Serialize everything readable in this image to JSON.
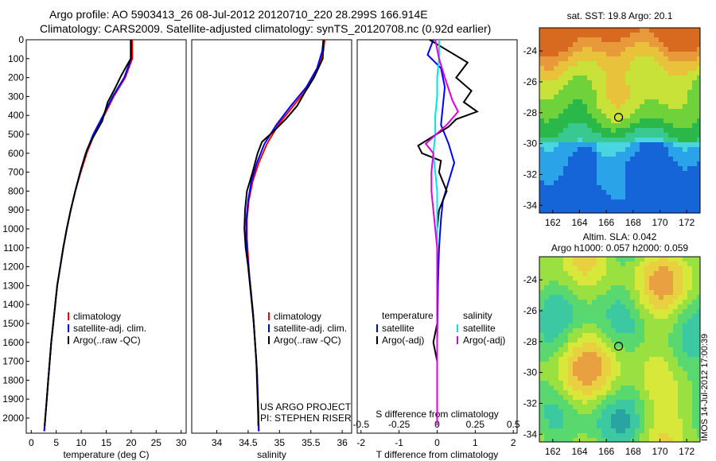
{
  "header": {
    "line1": "Argo profile: AO 5903413_26 08-Jul-2012 20120710_220 28.299S 166.914E",
    "line2": "Climatology: CARS2009. Satellite-adjusted climatology: synTS_20120708.nc (0.92d earlier)"
  },
  "credit": "IMOS 14-Jul-2012 17:00:39",
  "colors": {
    "climatology": "#ff0000",
    "satellite": "#0000ff",
    "argo": "#000000",
    "cyan": "#00e5e5",
    "magenta": "#e000e0"
  },
  "chart_data": [
    {
      "type": "line",
      "id": "temperature",
      "xlabel": "temperature (deg C)",
      "xlim": [
        -1,
        31
      ],
      "ylim": [
        2080,
        0
      ],
      "xticks": [
        0,
        5,
        10,
        15,
        20,
        25,
        30
      ],
      "yticks": [
        0,
        100,
        200,
        300,
        400,
        500,
        600,
        700,
        800,
        900,
        1000,
        1100,
        1200,
        1300,
        1400,
        1500,
        1600,
        1700,
        1800,
        1900,
        2000
      ],
      "legend": [
        "climatology",
        "satellite-adj. clim.",
        "Argo(..raw -QC)"
      ],
      "series": [
        {
          "name": "climatology",
          "color": "#ff0000",
          "points": [
            [
              20.2,
              0
            ],
            [
              20.2,
              100
            ],
            [
              18.8,
              200
            ],
            [
              16.5,
              300
            ],
            [
              14.6,
              400
            ],
            [
              12.6,
              500
            ],
            [
              11.1,
              600
            ],
            [
              9.9,
              700
            ],
            [
              8.8,
              800
            ],
            [
              7.9,
              900
            ],
            [
              7.1,
              1000
            ],
            [
              6.4,
              1100
            ],
            [
              5.8,
              1200
            ],
            [
              5.2,
              1300
            ],
            [
              4.8,
              1400
            ],
            [
              4.4,
              1500
            ],
            [
              4.0,
              1600
            ],
            [
              3.7,
              1700
            ],
            [
              3.4,
              1800
            ],
            [
              3.1,
              1900
            ],
            [
              2.8,
              2000
            ],
            [
              2.6,
              2070
            ]
          ]
        },
        {
          "name": "satellite-adj. clim.",
          "color": "#0000ff",
          "points": [
            [
              20.0,
              0
            ],
            [
              20.0,
              100
            ],
            [
              18.6,
              200
            ],
            [
              16.3,
              300
            ],
            [
              14.4,
              400
            ],
            [
              12.4,
              500
            ],
            [
              10.9,
              600
            ],
            [
              9.8,
              700
            ],
            [
              8.8,
              800
            ],
            [
              7.9,
              900
            ],
            [
              7.1,
              1000
            ],
            [
              6.4,
              1100
            ],
            [
              5.8,
              1200
            ],
            [
              5.2,
              1300
            ],
            [
              4.8,
              1400
            ],
            [
              4.4,
              1500
            ],
            [
              4.0,
              1600
            ],
            [
              3.7,
              1700
            ],
            [
              3.4,
              1800
            ],
            [
              3.1,
              1900
            ],
            [
              2.8,
              2000
            ],
            [
              2.6,
              2070
            ]
          ]
        },
        {
          "name": "Argo(..raw -QC)",
          "color": "#000000",
          "points": [
            [
              19.9,
              0
            ],
            [
              19.9,
              100
            ],
            [
              18.0,
              190
            ],
            [
              16.7,
              260
            ],
            [
              15.3,
              330
            ],
            [
              14.2,
              430
            ],
            [
              12.3,
              520
            ],
            [
              11.2,
              580
            ],
            [
              10.0,
              680
            ],
            [
              8.8,
              800
            ],
            [
              7.9,
              900
            ],
            [
              7.1,
              1000
            ],
            [
              6.4,
              1100
            ],
            [
              5.8,
              1200
            ],
            [
              5.2,
              1300
            ],
            [
              4.8,
              1400
            ],
            [
              4.4,
              1500
            ],
            [
              4.0,
              1600
            ],
            [
              3.7,
              1700
            ],
            [
              3.4,
              1800
            ],
            [
              3.1,
              1900
            ],
            [
              2.8,
              2000
            ],
            [
              2.7,
              2040
            ]
          ]
        }
      ]
    },
    {
      "type": "line",
      "id": "salinity",
      "xlabel": "salinity",
      "xlim": [
        33.6,
        36.15
      ],
      "ylim": [
        2080,
        0
      ],
      "xticks": [
        34,
        34.5,
        35,
        35.5,
        36
      ],
      "legend": [
        "climatology",
        "satellite-adj. clim.",
        "Argo(..raw -QC)"
      ],
      "annotation": [
        "US ARGO PROJECT",
        "PI: STEPHEN RISER"
      ],
      "series": [
        {
          "name": "climatology",
          "color": "#ff0000",
          "points": [
            [
              35.72,
              0
            ],
            [
              35.7,
              60
            ],
            [
              35.62,
              150
            ],
            [
              35.46,
              250
            ],
            [
              35.22,
              350
            ],
            [
              34.98,
              450
            ],
            [
              34.8,
              550
            ],
            [
              34.67,
              650
            ],
            [
              34.57,
              750
            ],
            [
              34.51,
              850
            ],
            [
              34.48,
              950
            ],
            [
              34.48,
              1050
            ],
            [
              34.5,
              1150
            ],
            [
              34.52,
              1250
            ],
            [
              34.55,
              1350
            ],
            [
              34.58,
              1450
            ],
            [
              34.6,
              1550
            ],
            [
              34.62,
              1650
            ],
            [
              34.64,
              1750
            ],
            [
              34.65,
              1850
            ],
            [
              34.66,
              1950
            ],
            [
              34.67,
              2070
            ]
          ]
        },
        {
          "name": "satellite-adj. clim.",
          "color": "#0000ff",
          "points": [
            [
              35.7,
              0
            ],
            [
              35.68,
              60
            ],
            [
              35.6,
              150
            ],
            [
              35.43,
              250
            ],
            [
              35.18,
              350
            ],
            [
              34.95,
              450
            ],
            [
              34.76,
              550
            ],
            [
              34.64,
              650
            ],
            [
              34.55,
              750
            ],
            [
              34.5,
              850
            ],
            [
              34.47,
              950
            ],
            [
              34.47,
              1050
            ],
            [
              34.49,
              1150
            ],
            [
              34.52,
              1250
            ],
            [
              34.55,
              1350
            ],
            [
              34.58,
              1450
            ],
            [
              34.6,
              1550
            ],
            [
              34.62,
              1650
            ],
            [
              34.64,
              1750
            ],
            [
              34.65,
              1850
            ],
            [
              34.66,
              1950
            ],
            [
              34.67,
              2070
            ]
          ]
        },
        {
          "name": "Argo(..raw -QC)",
          "color": "#000000",
          "points": [
            [
              35.7,
              0
            ],
            [
              35.69,
              100
            ],
            [
              35.55,
              200
            ],
            [
              35.4,
              280
            ],
            [
              35.28,
              350
            ],
            [
              35.1,
              420
            ],
            [
              34.92,
              480
            ],
            [
              34.72,
              540
            ],
            [
              34.65,
              600
            ],
            [
              34.57,
              700
            ],
            [
              34.48,
              800
            ],
            [
              34.45,
              900
            ],
            [
              34.44,
              1000
            ],
            [
              34.46,
              1100
            ],
            [
              34.5,
              1200
            ],
            [
              34.53,
              1300
            ],
            [
              34.56,
              1400
            ],
            [
              34.59,
              1500
            ],
            [
              34.61,
              1600
            ],
            [
              34.63,
              1700
            ],
            [
              34.64,
              1800
            ],
            [
              34.65,
              1900
            ],
            [
              34.66,
              2000
            ],
            [
              34.66,
              2040
            ]
          ]
        }
      ]
    },
    {
      "type": "line",
      "id": "difference",
      "xlabel": "T difference from climatology",
      "top_label": "S difference from climatology",
      "xlim": [
        -2.1,
        2.1
      ],
      "ylim": [
        2080,
        0
      ],
      "xticks_T": [
        -2,
        -1,
        0,
        1,
        2
      ],
      "xticks_S": [
        "-0.5",
        "-0.25",
        "0",
        "0.25",
        "0.5"
      ],
      "xticks_S_pos": [
        -2,
        -1,
        0,
        1,
        2
      ],
      "legend_left_title": "temperature",
      "legend_right_title": "salinity",
      "legend_left": [
        "satellite",
        "Argo(-adj)"
      ],
      "legend_right": [
        "satellite",
        "Argo(-adj)"
      ],
      "series": [
        {
          "name": "T satellite",
          "color": "#0000ff",
          "points": [
            [
              -0.1,
              0
            ],
            [
              -0.25,
              80
            ],
            [
              0.1,
              150
            ],
            [
              0.2,
              250
            ],
            [
              0.15,
              350
            ],
            [
              0.1,
              450
            ],
            [
              0.3,
              550
            ],
            [
              0.45,
              650
            ],
            [
              0.3,
              750
            ],
            [
              0.15,
              850
            ],
            [
              0.1,
              950
            ],
            [
              0.05,
              1100
            ],
            [
              0.02,
              1300
            ],
            [
              0.0,
              1600
            ],
            [
              0.0,
              2040
            ]
          ]
        },
        {
          "name": "T Argo(-adj)",
          "color": "#000000",
          "points": [
            [
              -0.2,
              0
            ],
            [
              0.3,
              60
            ],
            [
              0.8,
              120
            ],
            [
              0.5,
              200
            ],
            [
              0.9,
              270
            ],
            [
              0.7,
              330
            ],
            [
              1.05,
              380
            ],
            [
              0.5,
              420
            ],
            [
              0.3,
              460
            ],
            [
              -0.5,
              560
            ],
            [
              -0.4,
              600
            ],
            [
              0.1,
              640
            ],
            [
              0.05,
              700
            ],
            [
              0.25,
              800
            ],
            [
              0.05,
              900
            ],
            [
              0.0,
              1000
            ],
            [
              0.0,
              1500
            ],
            [
              -0.1,
              1600
            ],
            [
              0.0,
              1700
            ],
            [
              0.0,
              2040
            ]
          ]
        },
        {
          "name": "S satellite",
          "color": "#00e5e5",
          "points": [
            [
              0.05,
              0
            ],
            [
              0.05,
              100
            ],
            [
              0.0,
              200
            ],
            [
              0.0,
              300
            ],
            [
              -0.05,
              400
            ],
            [
              -0.05,
              500
            ],
            [
              -0.1,
              600
            ],
            [
              -0.05,
              700
            ],
            [
              0.0,
              800
            ],
            [
              0.0,
              1000
            ],
            [
              0.0,
              2040
            ]
          ]
        },
        {
          "name": "S Argo(-adj)",
          "color": "#e000e0",
          "points": [
            [
              -0.05,
              0
            ],
            [
              0.05,
              100
            ],
            [
              0.2,
              200
            ],
            [
              0.4,
              320
            ],
            [
              0.55,
              380
            ],
            [
              0.25,
              450
            ],
            [
              -0.3,
              550
            ],
            [
              -0.1,
              600
            ],
            [
              -0.15,
              700
            ],
            [
              -0.15,
              800
            ],
            [
              -0.1,
              900
            ],
            [
              -0.05,
              1000
            ],
            [
              0.0,
              1100
            ],
            [
              0.0,
              2040
            ]
          ]
        }
      ]
    },
    {
      "type": "heatmap",
      "id": "sst-map",
      "title": "sat. SST: 19.8  Argo: 20.1",
      "xticks": [
        162,
        164,
        166,
        168,
        170,
        172
      ],
      "yticks": [
        -24,
        -26,
        -28,
        -30,
        -32,
        -34
      ],
      "xlim": [
        161,
        173
      ],
      "ylim": [
        -34.5,
        -22.5
      ],
      "colors": [
        "#1565d8",
        "#2aa3e8",
        "#4ad6e0",
        "#38c890",
        "#2ab84a",
        "#6fd23a",
        "#c8e23a",
        "#e8c23a",
        "#e89a3a",
        "#d86a20"
      ],
      "marker": {
        "lon": 166.914,
        "lat": -28.299
      }
    },
    {
      "type": "heatmap",
      "id": "sla-map",
      "title_lines": [
        "Altim. SLA: 0.042",
        "Argo h1000: 0.057 h2000: 0.059"
      ],
      "xticks": [
        162,
        164,
        166,
        168,
        170,
        172
      ],
      "yticks": [
        -24,
        -26,
        -28,
        -30,
        -32,
        -34
      ],
      "xlim": [
        161,
        173
      ],
      "ylim": [
        -34.5,
        -22.5
      ],
      "colors": [
        "#2aa3a3",
        "#3cc8a0",
        "#5ad870",
        "#9ae040",
        "#d8e83a",
        "#e8d040",
        "#e8a040"
      ],
      "marker": {
        "lon": 166.914,
        "lat": -28.299
      }
    }
  ]
}
